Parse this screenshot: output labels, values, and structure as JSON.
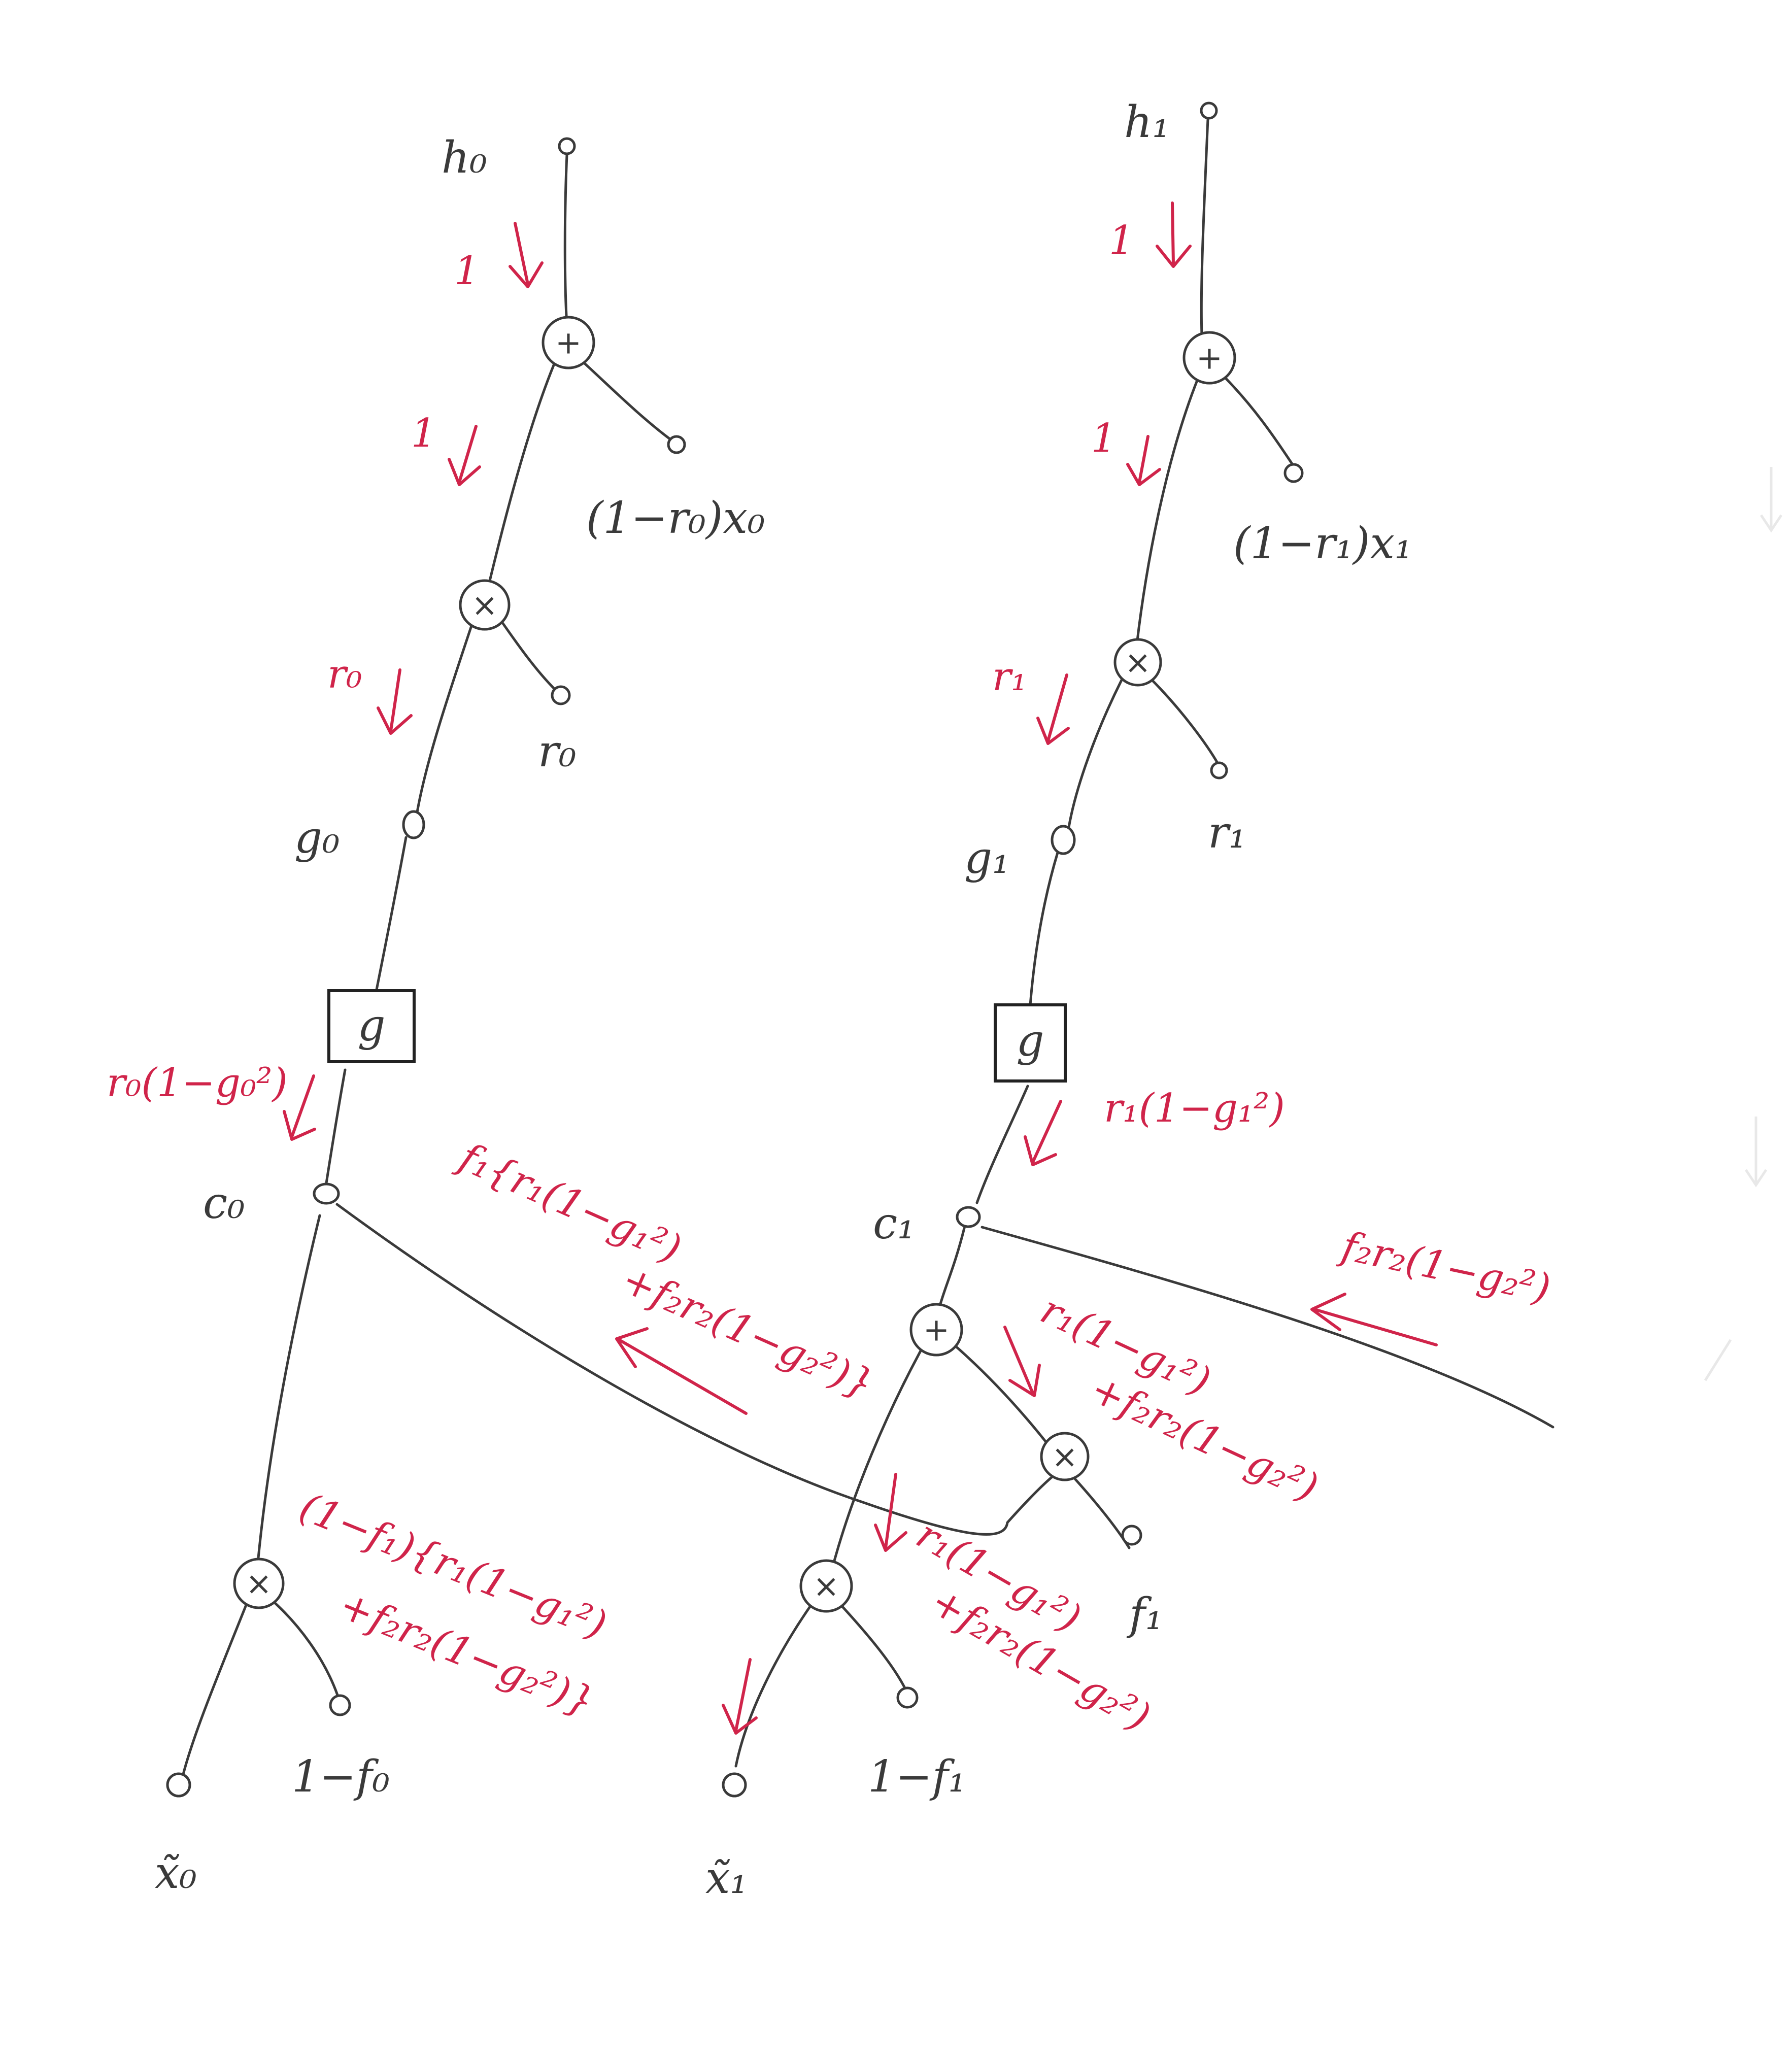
{
  "colors": {
    "ink": "#3a3a3a",
    "gradient": "#d0244a",
    "faint_bleedthrough": "#e2e2e2"
  },
  "left": {
    "h": "h₀",
    "plus_op": "+",
    "times_op": "×",
    "plus_input": "(1−r₀)x₀",
    "r_input": "r₀",
    "g_state": "g₀",
    "g_box": "g",
    "c_state": "c₀",
    "x_tilde": "x̃₀",
    "one_minus_f": "1−f₀"
  },
  "right": {
    "h": "h₁",
    "plus_op": "+",
    "times_op": "×",
    "plus_input": "(1−r₁)x₁",
    "r_input": "r₁",
    "g_state": "g₁",
    "g_box": "g",
    "c_state": "c₁",
    "x_tilde": "x̃₁",
    "one_minus_f": "1−f₁",
    "f_input": "f₁"
  },
  "gradients": {
    "left_top": "1",
    "left_mid": "1",
    "left_r": "r₀",
    "left_g": "r₀(1−g₀²)",
    "right_top": "1",
    "right_mid": "1",
    "right_r": "r₁",
    "right_g": "r₁(1−g₁²)",
    "incoming": "f₂r₂(1−g₂²)",
    "cross_line1": "f₁{r₁(1−g₁²)",
    "cross_line2": "+f₂r₂(1−g₂²)}",
    "c1_sum_line1": "r₁(1−g₁²)",
    "c1_sum_line2": "+f₂r₂(1−g₂²)",
    "down_line1": "r₁(1−g₁²)",
    "down_line2": "+f₂r₂(1−g₂²)",
    "left_bottom_line1": "(1−f₁){r₁(1−g₁²)",
    "left_bottom_line2": "+f₂r₂(1−g₂²)}"
  }
}
